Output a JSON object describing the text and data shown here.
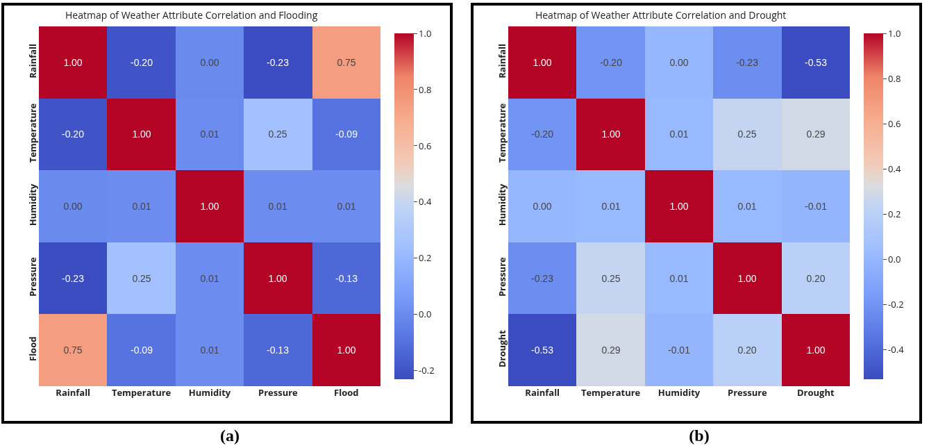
{
  "chart_data": [
    {
      "type": "heatmap",
      "title": "Heatmap of Weather Attribute Correlation and Flooding",
      "categories": [
        "Rainfall",
        "Temperature",
        "Humidity",
        "Pressure",
        "Flood"
      ],
      "y_categories": [
        "Rainfall",
        "Temperature",
        "Humidity",
        "Pressure",
        "Flood"
      ],
      "cells": [
        [
          1.0,
          -0.2,
          0.0,
          -0.23,
          0.75
        ],
        [
          -0.2,
          1.0,
          0.01,
          0.25,
          -0.09
        ],
        [
          0.0,
          0.01,
          1.0,
          0.01,
          0.01
        ],
        [
          -0.23,
          0.25,
          0.01,
          1.0,
          -0.13
        ],
        [
          0.75,
          -0.09,
          0.01,
          -0.13,
          1.0
        ]
      ],
      "cell_labels": [
        [
          "1.00",
          "-0.20",
          "0.00",
          "-0.23",
          "0.75"
        ],
        [
          "-0.20",
          "1.00",
          "0.01",
          "0.25",
          "-0.09"
        ],
        [
          "0.00",
          "0.01",
          "1.00",
          "0.01",
          "0.01"
        ],
        [
          "-0.23",
          "0.25",
          "0.01",
          "1.00",
          "-0.13"
        ],
        [
          "0.75",
          "-0.09",
          "0.01",
          "-0.13",
          "1.00"
        ]
      ],
      "clim": [
        -0.23,
        1.0
      ],
      "cticks": [
        {
          "value": -0.2,
          "label": "-0.2"
        },
        {
          "value": 0,
          "label": "0.0"
        },
        {
          "value": 0.2,
          "label": "0.2"
        },
        {
          "value": 0.4,
          "label": "0.4"
        },
        {
          "value": 0.6,
          "label": "0.6"
        },
        {
          "value": 0.8,
          "label": "0.8"
        },
        {
          "value": 1,
          "label": "1.0"
        }
      ],
      "annotations": [
        "(a)"
      ]
    },
    {
      "type": "heatmap",
      "title": "Heatmap of Weather Attribute Correlation and Drought",
      "categories": [
        "Rainfall",
        "Temperature",
        "Humidity",
        "Pressure",
        "Drought"
      ],
      "y_categories": [
        "Rainfall",
        "Temperature",
        "Humidity",
        "Pressure",
        "Drought"
      ],
      "cells": [
        [
          1.0,
          -0.2,
          0.0,
          -0.23,
          -0.53
        ],
        [
          -0.2,
          1.0,
          0.01,
          0.25,
          0.29
        ],
        [
          0.0,
          0.01,
          1.0,
          0.01,
          -0.01
        ],
        [
          -0.23,
          0.25,
          0.01,
          1.0,
          0.2
        ],
        [
          -0.53,
          0.29,
          -0.01,
          0.2,
          1.0
        ]
      ],
      "cell_labels": [
        [
          "1.00",
          "-0.20",
          "0.00",
          "-0.23",
          "-0.53"
        ],
        [
          "-0.20",
          "1.00",
          "0.01",
          "0.25",
          "0.29"
        ],
        [
          "0.00",
          "0.01",
          "1.00",
          "0.01",
          "-0.01"
        ],
        [
          "-0.23",
          "0.25",
          "0.01",
          "1.00",
          "0.20"
        ],
        [
          "-0.53",
          "0.29",
          "-0.01",
          "0.20",
          "1.00"
        ]
      ],
      "clim": [
        -0.53,
        1.0
      ],
      "cticks": [
        {
          "value": -0.4,
          "label": "-0.4"
        },
        {
          "value": -0.2,
          "label": "-0.2"
        },
        {
          "value": 0,
          "label": "0.0"
        },
        {
          "value": 0.2,
          "label": "0.2"
        },
        {
          "value": 0.4,
          "label": "0.4"
        },
        {
          "value": 0.6,
          "label": "0.6"
        },
        {
          "value": 0.8,
          "label": "0.8"
        },
        {
          "value": 1,
          "label": "1.0"
        }
      ],
      "annotations": [
        "(b)"
      ]
    }
  ]
}
